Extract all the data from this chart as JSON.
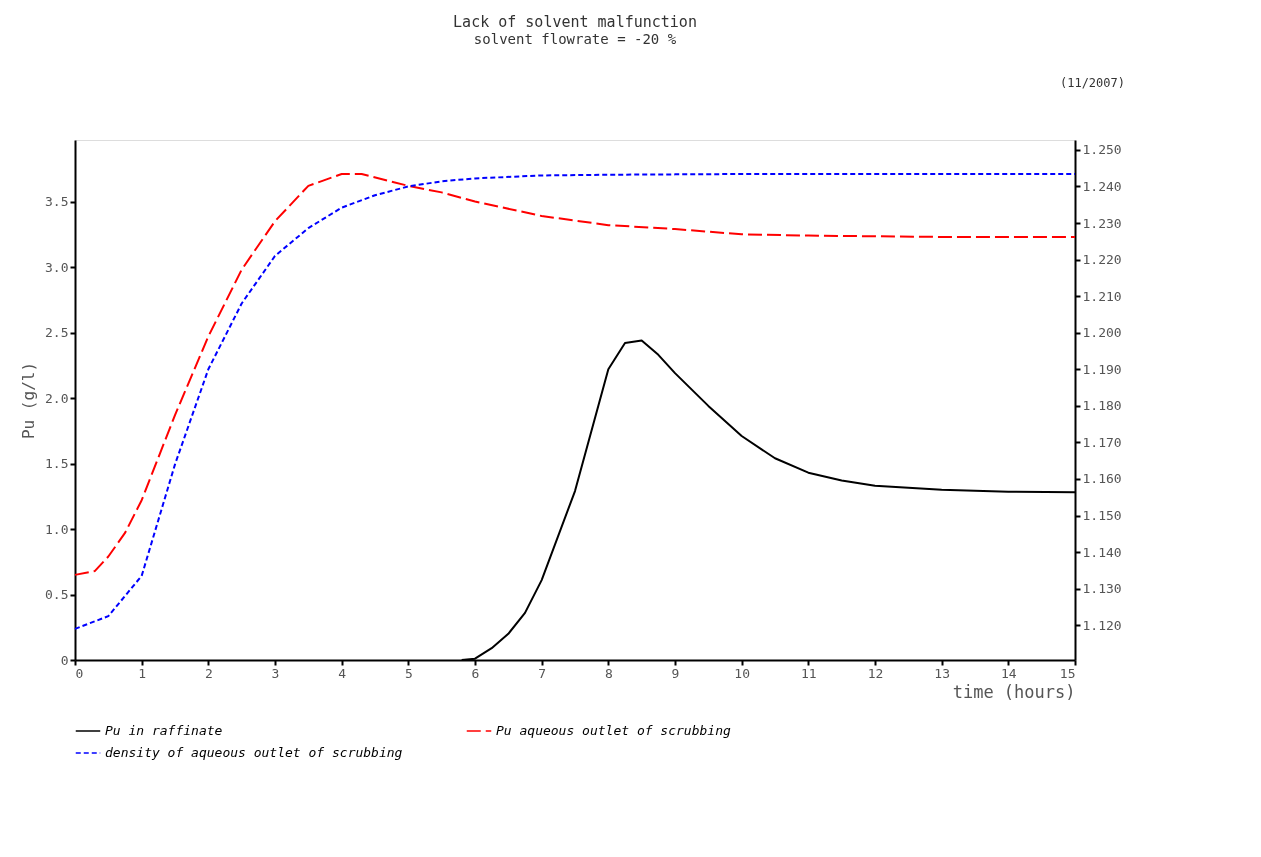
{
  "chart_data": {
    "type": "line",
    "title": "Lack of solvent malfunction",
    "subtitle": "solvent flowrate = -20 %",
    "xlabel": "time (hours)",
    "ylabel": "Pu (g/l)",
    "annotations": [
      "(11/2007)"
    ],
    "xlim": [
      0,
      15
    ],
    "xticks": [
      0,
      1,
      2,
      3,
      4,
      5,
      6,
      7,
      8,
      9,
      10,
      11,
      12,
      13,
      14,
      15
    ],
    "ylim": [
      0,
      3.97
    ],
    "yticks": [
      0,
      {
        "value": 0.5,
        "label": "0.5"
      },
      {
        "value": 1,
        "label": "1.0"
      },
      {
        "value": 1.5,
        "label": "1.5"
      },
      {
        "value": 2,
        "label": "2.0"
      },
      {
        "value": 2.5,
        "label": "2.5"
      },
      {
        "value": 3,
        "label": "3.0"
      },
      {
        "value": 3.5,
        "label": "3.5"
      }
    ],
    "y2lim": [
      1.1105,
      1.2527
    ],
    "y2ticks": [
      {
        "value": 1.12,
        "label": "1.120"
      },
      {
        "value": 1.13,
        "label": "1.130"
      },
      {
        "value": 1.14,
        "label": "1.140"
      },
      {
        "value": 1.15,
        "label": "1.150"
      },
      {
        "value": 1.16,
        "label": "1.160"
      },
      {
        "value": 1.17,
        "label": "1.170"
      },
      {
        "value": 1.18,
        "label": "1.180"
      },
      {
        "value": 1.19,
        "label": "1.190"
      },
      {
        "value": 1.2,
        "label": "1.200"
      },
      {
        "value": 1.21,
        "label": "1.210"
      },
      {
        "value": 1.22,
        "label": "1.220"
      },
      {
        "value": 1.23,
        "label": "1.230"
      },
      {
        "value": 1.24,
        "label": "1.240"
      },
      {
        "value": 1.25,
        "label": "1.250"
      }
    ],
    "grid": false,
    "legend": "bottom",
    "marker": "none",
    "series": [
      {
        "name": "Pu in raffinate",
        "color": "#000000",
        "line_style": "solid",
        "x": [
          5.8,
          6,
          6.25,
          6.5,
          6.75,
          7,
          7.5,
          8,
          8.25,
          8.5,
          8.75,
          9,
          9.5,
          10,
          10.5,
          11,
          11.5,
          12,
          13,
          14,
          15
        ],
        "values": [
          0,
          0.01,
          0.09,
          0.2,
          0.36,
          0.61,
          1.29,
          2.22,
          2.42,
          2.44,
          2.33,
          2.19,
          1.94,
          1.71,
          1.54,
          1.43,
          1.37,
          1.33,
          1.3,
          1.285,
          1.28
        ]
      },
      {
        "name": "Pu aqueous outlet of scrubbing",
        "color": "#ff0000",
        "line_style": "dashed",
        "x": [
          0,
          0.3,
          0.5,
          0.75,
          1,
          1.5,
          2,
          2.5,
          3,
          3.5,
          4,
          4.3,
          5,
          5.5,
          6,
          7,
          8,
          9,
          10,
          11,
          12,
          13,
          14,
          15
        ],
        "values": [
          0.65,
          0.68,
          0.79,
          0.97,
          1.22,
          1.87,
          2.47,
          2.98,
          3.35,
          3.62,
          3.71,
          3.71,
          3.62,
          3.57,
          3.5,
          3.39,
          3.32,
          3.29,
          3.25,
          3.24,
          3.235,
          3.23,
          3.23,
          3.23
        ]
      },
      {
        "name": "density of aqueous outlet of scrubbing",
        "color": "#0000ff",
        "line_style": "dotted",
        "axis": "y2",
        "x": [
          0,
          0.5,
          1,
          1.5,
          2,
          2.5,
          3,
          3.5,
          4,
          4.5,
          5,
          5.5,
          6,
          7,
          8,
          9,
          10,
          11,
          12,
          13,
          14,
          15
        ],
        "values": [
          1.119,
          1.1225,
          1.1335,
          1.164,
          1.19,
          1.208,
          1.221,
          1.2286,
          1.2342,
          1.2376,
          1.24,
          1.2414,
          1.2422,
          1.243,
          1.2432,
          1.2433,
          1.2434,
          1.2434,
          1.2434,
          1.2434,
          1.2434,
          1.2434
        ]
      }
    ]
  }
}
